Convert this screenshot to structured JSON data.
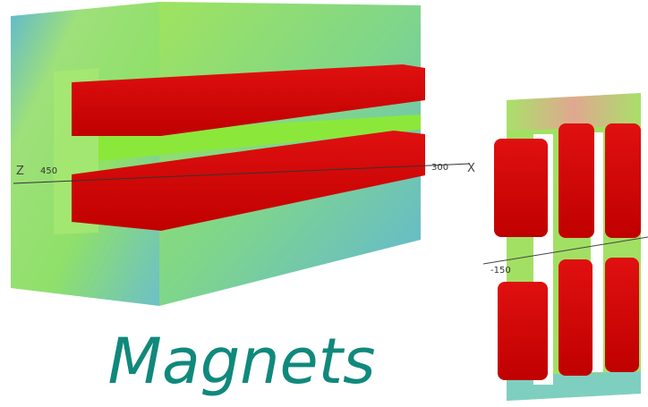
{
  "caption": "Magnets",
  "left_render": {
    "axis_labels": [
      "Z",
      "450",
      "300",
      "X"
    ]
  },
  "right_render": {
    "axis_labels": [
      "-150"
    ]
  }
}
